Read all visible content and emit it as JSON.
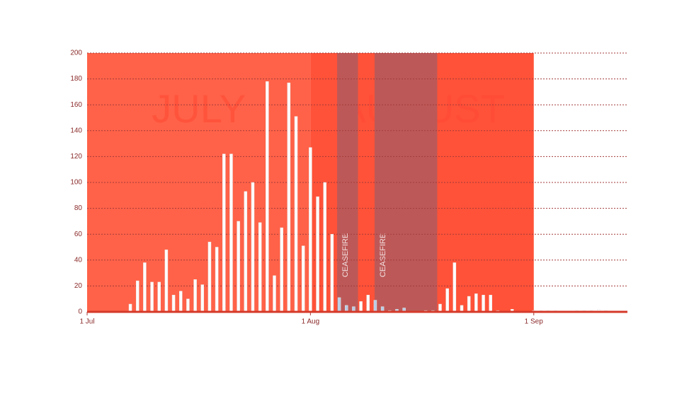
{
  "chart_data": {
    "type": "bar",
    "x": [
      0,
      1,
      2,
      3,
      4,
      5,
      6,
      7,
      8,
      9,
      10,
      11,
      12,
      13,
      14,
      15,
      16,
      17,
      18,
      19,
      20,
      21,
      22,
      23,
      24,
      25,
      26,
      27,
      28,
      29,
      30,
      31,
      32,
      33,
      34,
      35,
      36,
      37,
      38,
      39,
      40,
      41,
      42,
      43,
      44,
      45,
      46,
      47,
      48,
      49,
      50,
      51,
      52,
      53,
      54,
      55,
      56,
      57,
      58,
      59,
      60,
      61,
      62,
      63,
      64,
      65,
      66,
      67,
      68,
      69,
      70,
      71,
      72,
      73,
      74
    ],
    "values": [
      0,
      0,
      0,
      0,
      0,
      0,
      6,
      24,
      38,
      23,
      23,
      48,
      13,
      16,
      10,
      25,
      21,
      54,
      50,
      122,
      122,
      70,
      93,
      100,
      69,
      178,
      28,
      65,
      177,
      151,
      51,
      127,
      89,
      100,
      60,
      11,
      5,
      4,
      8,
      13,
      9,
      4,
      1,
      2,
      3,
      0,
      0,
      1,
      1,
      6,
      18,
      38,
      5,
      12,
      14,
      13,
      13,
      1,
      0,
      2,
      0,
      0,
      1,
      1,
      1,
      1,
      0,
      0,
      1,
      1,
      1,
      2,
      1,
      0,
      0
    ],
    "color": "#ffffff",
    "band_bar_color": "#b9cde6",
    "xlim": [
      0,
      75
    ],
    "xticks": [
      {
        "value": 0,
        "label": "1 Jul"
      },
      {
        "value": 31,
        "label": "1 Aug"
      },
      {
        "value": 62,
        "label": "1 Sep"
      }
    ],
    "ylim": [
      0,
      200
    ],
    "yticks": [
      0,
      20,
      40,
      60,
      80,
      100,
      120,
      140,
      160,
      180,
      200
    ],
    "grid": true,
    "periods": [
      {
        "label": "JULY",
        "start": 0,
        "end": 31,
        "color": "#ff6248"
      },
      {
        "label": "AUGUST",
        "start": 31,
        "end": 62,
        "color": "#ff5238"
      }
    ],
    "bands": [
      {
        "label": "CEASEFIRE",
        "start": 34.7,
        "end": 37.6,
        "color": "#b05a5e"
      },
      {
        "label": "CEASEFIRE",
        "start": 39.9,
        "end": 48.6,
        "color": "#b05a5e"
      }
    ]
  }
}
